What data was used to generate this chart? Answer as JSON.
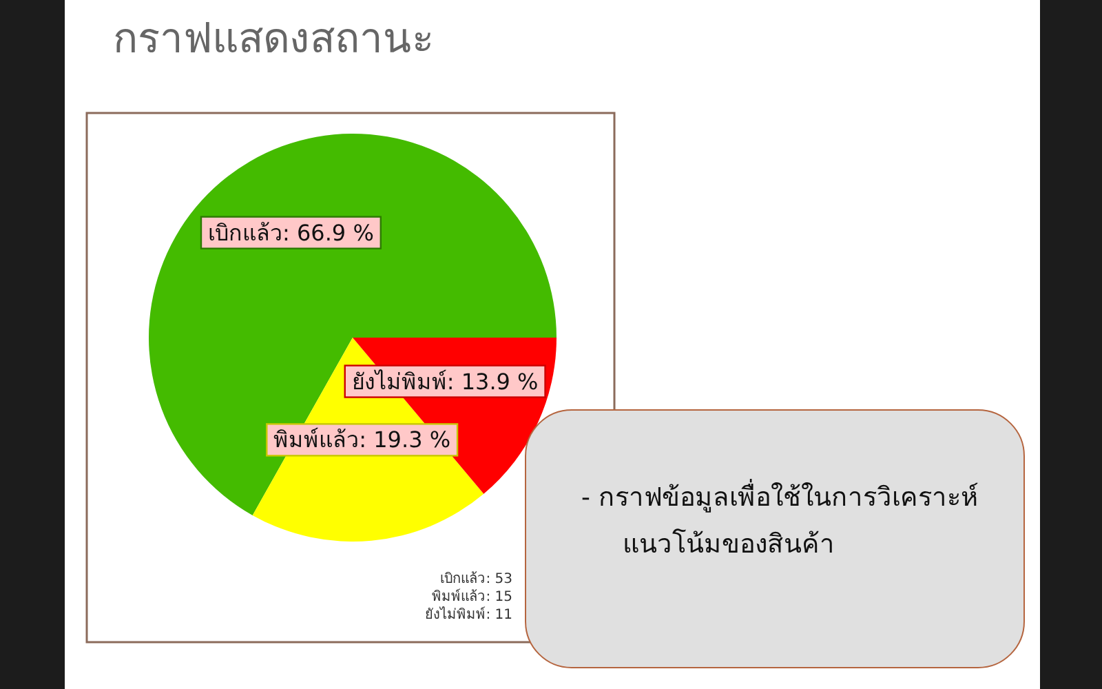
{
  "chart_data": {
    "type": "pie",
    "title": "กราฟแสดงสถานะ",
    "categories": [
      "เบิกแล้ว",
      "พิมพ์แล้ว",
      "ยังไม่พิมพ์"
    ],
    "values": [
      66.9,
      19.3,
      13.9
    ],
    "colors": [
      "#44bb00",
      "#ffff00",
      "#ff0000"
    ],
    "value_labels": [
      "66.9 %",
      "19.3 %",
      "13.9 %"
    ],
    "annotations": [
      "เบิกแล้ว: 53",
      "พิมพ์แล้ว: 15",
      "ยังไม่พิมพ์: 11",
      "- กราฟข้อมูลเพื่อใช้ในการวิเคราะห์แนวโน้มของสินค้า"
    ]
  }
}
